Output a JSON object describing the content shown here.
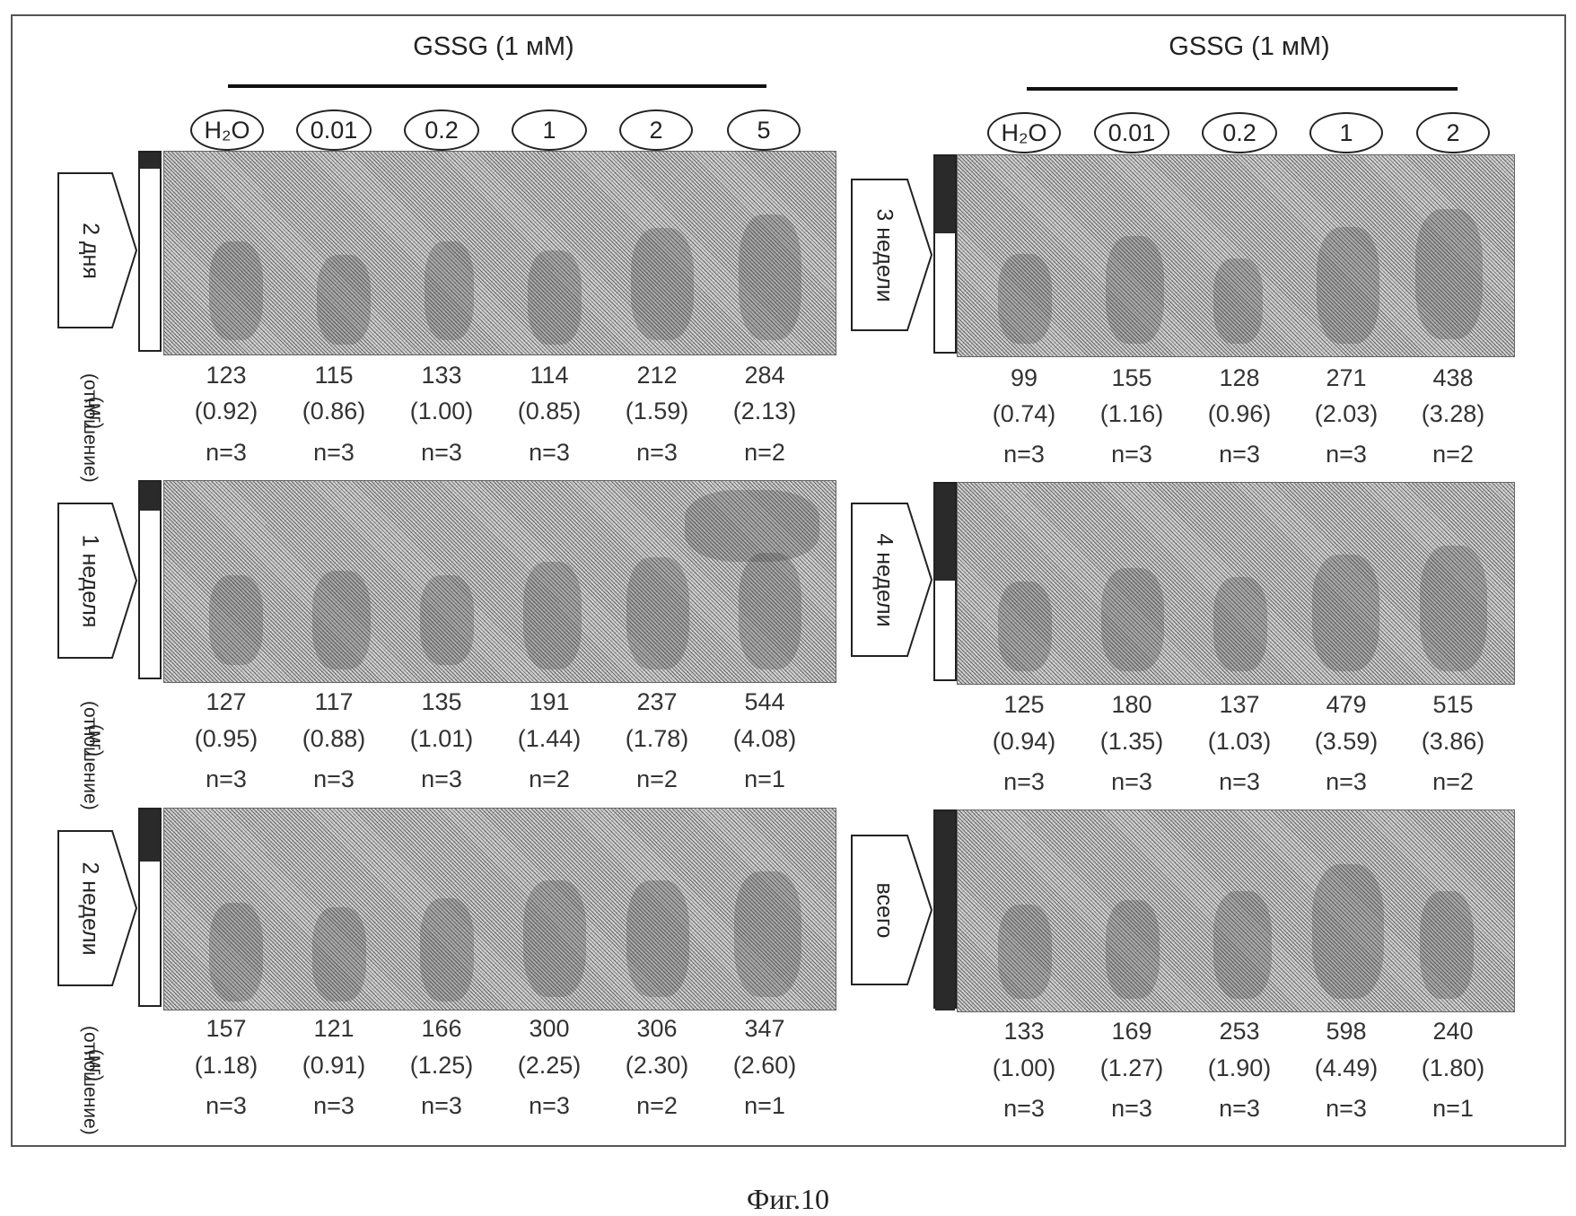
{
  "figure": {
    "caption": "Фиг.10",
    "left": {
      "header": "GSSG (1 мМ)",
      "conc_labels": [
        "H₂O",
        "0.01",
        "0.2",
        "1",
        "2",
        "5"
      ],
      "y_label_unit": "(мг)",
      "y_label_ratio": "(отношение)",
      "panels": [
        {
          "label": "2 дня",
          "mass": [
            "123",
            "115",
            "133",
            "114",
            "212",
            "284"
          ],
          "ratio": [
            "(0.92)",
            "(0.86)",
            "(1.00)",
            "(0.85)",
            "(1.59)",
            "(2.13)"
          ],
          "n": [
            "n=3",
            "n=3",
            "n=3",
            "n=3",
            "n=3",
            "n=2"
          ]
        },
        {
          "label": "1 неделя",
          "mass": [
            "127",
            "117",
            "135",
            "191",
            "237",
            "544"
          ],
          "ratio": [
            "(0.95)",
            "(0.88)",
            "(1.01)",
            "(1.44)",
            "(1.78)",
            "(4.08)"
          ],
          "n": [
            "n=3",
            "n=3",
            "n=3",
            "n=2",
            "n=2",
            "n=1"
          ]
        },
        {
          "label": "2 недели",
          "mass": [
            "157",
            "121",
            "166",
            "300",
            "306",
            "347"
          ],
          "ratio": [
            "(1.18)",
            "(0.91)",
            "(1.25)",
            "(2.25)",
            "(2.30)",
            "(2.60)"
          ],
          "n": [
            "n=3",
            "n=3",
            "n=3",
            "n=3",
            "n=2",
            "n=1"
          ]
        }
      ]
    },
    "right": {
      "header": "GSSG (1 мМ)",
      "conc_labels": [
        "H₂O",
        "0.01",
        "0.2",
        "1",
        "2"
      ],
      "panels": [
        {
          "label": "3 недели",
          "mass": [
            "99",
            "155",
            "128",
            "271",
            "438"
          ],
          "ratio": [
            "(0.74)",
            "(1.16)",
            "(0.96)",
            "(2.03)",
            "(3.28)"
          ],
          "n": [
            "n=3",
            "n=3",
            "n=3",
            "n=3",
            "n=2"
          ]
        },
        {
          "label": "4 недели",
          "mass": [
            "125",
            "180",
            "137",
            "479",
            "515"
          ],
          "ratio": [
            "(0.94)",
            "(1.35)",
            "(1.03)",
            "(3.59)",
            "(3.86)"
          ],
          "n": [
            "n=3",
            "n=3",
            "n=3",
            "n=3",
            "n=2"
          ]
        },
        {
          "label": "всего",
          "mass": [
            "133",
            "169",
            "253",
            "598",
            "240"
          ],
          "ratio": [
            "(1.00)",
            "(1.27)",
            "(1.90)",
            "(4.49)",
            "(1.80)"
          ],
          "n": [
            "n=3",
            "n=3",
            "n=3",
            "n=3",
            "n=1"
          ]
        }
      ]
    }
  }
}
